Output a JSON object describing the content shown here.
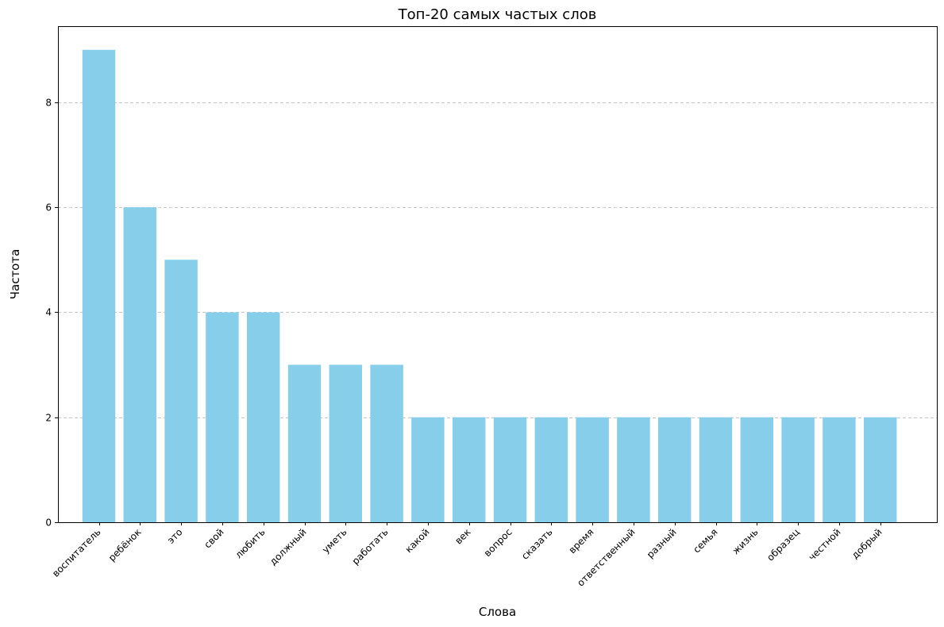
{
  "chart_data": {
    "type": "bar",
    "title": "Топ-20 самых частых слов",
    "xlabel": "Слова",
    "ylabel": "Частота",
    "categories": [
      "воспитатель",
      "ребёнок",
      "это",
      "свой",
      "любить",
      "должный",
      "уметь",
      "работать",
      "какой",
      "век",
      "вопрос",
      "сказать",
      "время",
      "ответственный",
      "разный",
      "семья",
      "жизнь",
      "образец",
      "честной",
      "добрый"
    ],
    "values": [
      9,
      6,
      5,
      4,
      4,
      3,
      3,
      3,
      2,
      2,
      2,
      2,
      2,
      2,
      2,
      2,
      2,
      2,
      2,
      2
    ],
    "ylim": [
      0,
      9.45
    ],
    "yticks": [
      0,
      2,
      4,
      6,
      8
    ],
    "grid": "y-dashed",
    "bar_color": "#87CEEB",
    "grid_color": "#c7c7c7"
  }
}
